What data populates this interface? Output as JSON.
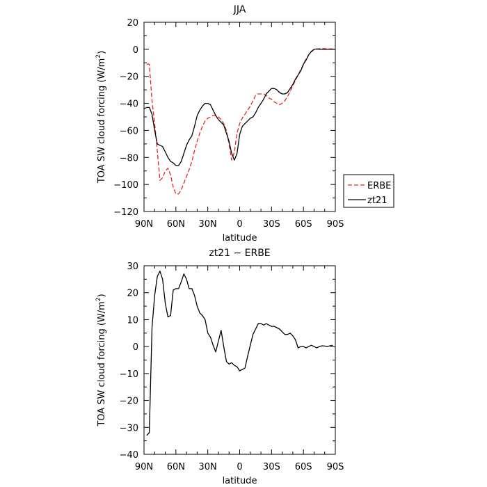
{
  "chart_data": [
    {
      "type": "line",
      "title": "JJA",
      "xlabel": "latitude",
      "ylabel_main": "TOA SW cloud forcing (W/m",
      "ylabel_sup": "2",
      "ylabel_close": ")",
      "xlim": [
        90,
        -90
      ],
      "ylim": [
        -120,
        20
      ],
      "x_ticks": [
        90,
        60,
        30,
        0,
        -30,
        -60,
        -90
      ],
      "x_tick_labels": [
        "90N",
        "60N",
        "30N",
        "0",
        "30S",
        "60S",
        "90S"
      ],
      "y_ticks": [
        -120,
        -100,
        -80,
        -60,
        -40,
        -20,
        0,
        20
      ],
      "y_tick_labels": [
        "−120",
        "−100",
        "−80",
        "−60",
        "−40",
        "−20",
        "0",
        "20"
      ],
      "grid": false,
      "legend_position": "right of plot, lower half",
      "series": [
        {
          "name": "ERBE",
          "color": "#e8241f",
          "dash": "dashed",
          "points": [
            [
              87.5,
              -11
            ],
            [
              85,
              -11
            ],
            [
              82.5,
              -38
            ],
            [
              80,
              -55
            ],
            [
              77.5,
              -75
            ],
            [
              75,
              -97
            ],
            [
              72.5,
              -95
            ],
            [
              70,
              -90
            ],
            [
              67.5,
              -88
            ],
            [
              65,
              -93
            ],
            [
              62.5,
              -102
            ],
            [
              60,
              -107
            ],
            [
              57.5,
              -107
            ],
            [
              55,
              -104
            ],
            [
              52.5,
              -99
            ],
            [
              50,
              -94
            ],
            [
              47.5,
              -89
            ],
            [
              45,
              -83
            ],
            [
              42.5,
              -75
            ],
            [
              40,
              -68
            ],
            [
              37.5,
              -62
            ],
            [
              35,
              -57
            ],
            [
              32.5,
              -53
            ],
            [
              30,
              -51
            ],
            [
              27.5,
              -50
            ],
            [
              25,
              -49
            ],
            [
              22.5,
              -49
            ],
            [
              20,
              -50
            ],
            [
              17.5,
              -52
            ],
            [
              15,
              -55
            ],
            [
              12.5,
              -60
            ],
            [
              10,
              -70
            ],
            [
              7.5,
              -82
            ],
            [
              5,
              -76
            ],
            [
              2.5,
              -62
            ],
            [
              0,
              -55
            ],
            [
              -2.5,
              -51
            ],
            [
              -5,
              -48
            ],
            [
              -7.5,
              -45
            ],
            [
              -10,
              -42
            ],
            [
              -12.5,
              -38
            ],
            [
              -15,
              -34
            ],
            [
              -17.5,
              -33
            ],
            [
              -20,
              -33
            ],
            [
              -22.5,
              -33
            ],
            [
              -25,
              -34
            ],
            [
              -27.5,
              -36
            ],
            [
              -30,
              -37
            ],
            [
              -32.5,
              -39
            ],
            [
              -35,
              -40
            ],
            [
              -37.5,
              -41
            ],
            [
              -40,
              -40
            ],
            [
              -42.5,
              -38
            ],
            [
              -45,
              -35
            ],
            [
              -47.5,
              -31
            ],
            [
              -50,
              -27
            ],
            [
              -52.5,
              -23
            ],
            [
              -55,
              -19
            ],
            [
              -57.5,
              -15
            ],
            [
              -60,
              -11
            ],
            [
              -62.5,
              -7
            ],
            [
              -65,
              -4
            ],
            [
              -67.5,
              -2
            ],
            [
              -70,
              0
            ],
            [
              -72.5,
              0
            ],
            [
              -75,
              0.5
            ],
            [
              -77.5,
              0.5
            ],
            [
              -80,
              0.5
            ],
            [
              -82.5,
              0.3
            ],
            [
              -85,
              0.3
            ],
            [
              -87.5,
              0.3
            ],
            [
              -90,
              0
            ]
          ]
        },
        {
          "name": "zt21",
          "color": "#000000",
          "dash": "solid",
          "points": [
            [
              90,
              -44
            ],
            [
              87.5,
              -43
            ],
            [
              85,
              -43
            ],
            [
              82.5,
              -48
            ],
            [
              80,
              -60
            ],
            [
              77.5,
              -70
            ],
            [
              75,
              -71
            ],
            [
              72.5,
              -72
            ],
            [
              70,
              -76
            ],
            [
              67.5,
              -80
            ],
            [
              65,
              -83
            ],
            [
              62.5,
              -84
            ],
            [
              60,
              -86
            ],
            [
              57.5,
              -86
            ],
            [
              55,
              -83
            ],
            [
              52.5,
              -77
            ],
            [
              50,
              -71
            ],
            [
              47.5,
              -67
            ],
            [
              45,
              -64
            ],
            [
              42.5,
              -57
            ],
            [
              40,
              -49
            ],
            [
              37.5,
              -45
            ],
            [
              35,
              -42
            ],
            [
              32.5,
              -40
            ],
            [
              30,
              -40
            ],
            [
              27.5,
              -41
            ],
            [
              25,
              -45
            ],
            [
              22.5,
              -49
            ],
            [
              20,
              -52
            ],
            [
              17.5,
              -54
            ],
            [
              15,
              -56
            ],
            [
              12.5,
              -62
            ],
            [
              10,
              -68
            ],
            [
              7.5,
              -77
            ],
            [
              5,
              -82
            ],
            [
              2.5,
              -77
            ],
            [
              0,
              -63
            ],
            [
              -2.5,
              -57
            ],
            [
              -5,
              -55
            ],
            [
              -7.5,
              -53
            ],
            [
              -10,
              -51
            ],
            [
              -12.5,
              -50
            ],
            [
              -15,
              -47
            ],
            [
              -17.5,
              -43
            ],
            [
              -20,
              -40
            ],
            [
              -22.5,
              -37
            ],
            [
              -25,
              -33
            ],
            [
              -27.5,
              -31
            ],
            [
              -30,
              -29
            ],
            [
              -32.5,
              -29
            ],
            [
              -35,
              -30
            ],
            [
              -37.5,
              -32
            ],
            [
              -40,
              -33
            ],
            [
              -42.5,
              -33
            ],
            [
              -45,
              -32
            ],
            [
              -47.5,
              -29
            ],
            [
              -50,
              -26
            ],
            [
              -52.5,
              -22
            ],
            [
              -55,
              -19
            ],
            [
              -57.5,
              -16
            ],
            [
              -60,
              -11
            ],
            [
              -62.5,
              -8
            ],
            [
              -65,
              -4
            ],
            [
              -67.5,
              -1.5
            ],
            [
              -70,
              0
            ],
            [
              -72.5,
              0.3
            ],
            [
              -75,
              0
            ],
            [
              -77.5,
              0
            ],
            [
              -80,
              0
            ],
            [
              -82.5,
              0
            ],
            [
              -85,
              0
            ],
            [
              -87.5,
              0
            ],
            [
              -90,
              0
            ]
          ]
        }
      ]
    },
    {
      "type": "line",
      "title": "zt21 − ERBE",
      "xlabel": "latitude",
      "ylabel_main": "TOA SW cloud forcing (W/m",
      "ylabel_sup": "2",
      "ylabel_close": ")",
      "xlim": [
        90,
        -90
      ],
      "ylim": [
        -40,
        30
      ],
      "x_ticks": [
        90,
        60,
        30,
        0,
        -30,
        -60,
        -90
      ],
      "x_tick_labels": [
        "90N",
        "60N",
        "30N",
        "0",
        "30S",
        "60S",
        "90S"
      ],
      "y_ticks": [
        -40,
        -30,
        -20,
        -10,
        0,
        10,
        20,
        30
      ],
      "y_tick_labels": [
        "−40",
        "−30",
        "−20",
        "−10",
        "0",
        "10",
        "20",
        "30"
      ],
      "grid": false,
      "series": [
        {
          "color": "#000000",
          "dash": "solid",
          "points": [
            [
              87.5,
              -33
            ],
            [
              85,
              -32
            ],
            [
              82.5,
              7
            ],
            [
              80,
              19
            ],
            [
              77.5,
              26
            ],
            [
              75,
              28
            ],
            [
              72.5,
              25
            ],
            [
              70,
              16
            ],
            [
              67.5,
              11
            ],
            [
              65,
              11.5
            ],
            [
              62.5,
              21
            ],
            [
              60,
              21.5
            ],
            [
              57.5,
              21.5
            ],
            [
              55,
              24
            ],
            [
              52.5,
              27
            ],
            [
              50,
              25
            ],
            [
              47.5,
              21.5
            ],
            [
              45,
              21.5
            ],
            [
              42.5,
              19
            ],
            [
              40,
              15
            ],
            [
              37.5,
              12.5
            ],
            [
              35,
              11.5
            ],
            [
              32.5,
              10
            ],
            [
              30,
              5
            ],
            [
              27.5,
              3.5
            ],
            [
              25,
              0.5
            ],
            [
              22.5,
              -2
            ],
            [
              20,
              2
            ],
            [
              17.5,
              6
            ],
            [
              15,
              0
            ],
            [
              12.5,
              -5.5
            ],
            [
              10,
              -6.5
            ],
            [
              7.5,
              -6
            ],
            [
              5,
              -7
            ],
            [
              2.5,
              -7.5
            ],
            [
              0,
              -9
            ],
            [
              -2.5,
              -8.5
            ],
            [
              -5,
              -8
            ],
            [
              -7.5,
              -3.5
            ],
            [
              -10,
              0.5
            ],
            [
              -12.5,
              4.5
            ],
            [
              -15,
              6.5
            ],
            [
              -17.5,
              8.5
            ],
            [
              -20,
              8.5
            ],
            [
              -22.5,
              8
            ],
            [
              -25,
              8.5
            ],
            [
              -27.5,
              8
            ],
            [
              -30,
              7.5
            ],
            [
              -32.5,
              7.5
            ],
            [
              -35,
              7
            ],
            [
              -37.5,
              6.5
            ],
            [
              -40,
              5.5
            ],
            [
              -42.5,
              4.5
            ],
            [
              -45,
              4.5
            ],
            [
              -47.5,
              5
            ],
            [
              -50,
              4
            ],
            [
              -52.5,
              2.5
            ],
            [
              -55,
              -0.5
            ],
            [
              -57.5,
              0
            ],
            [
              -60,
              0
            ],
            [
              -62.5,
              -0.5
            ],
            [
              -65,
              0
            ],
            [
              -67.5,
              0.5
            ],
            [
              -70,
              0
            ],
            [
              -72.5,
              -0.5
            ],
            [
              -75,
              0
            ],
            [
              -77.5,
              0.3
            ],
            [
              -80,
              0.2
            ],
            [
              -82.5,
              0
            ],
            [
              -85,
              0.3
            ],
            [
              -87.5,
              0.5
            ]
          ]
        }
      ]
    }
  ]
}
